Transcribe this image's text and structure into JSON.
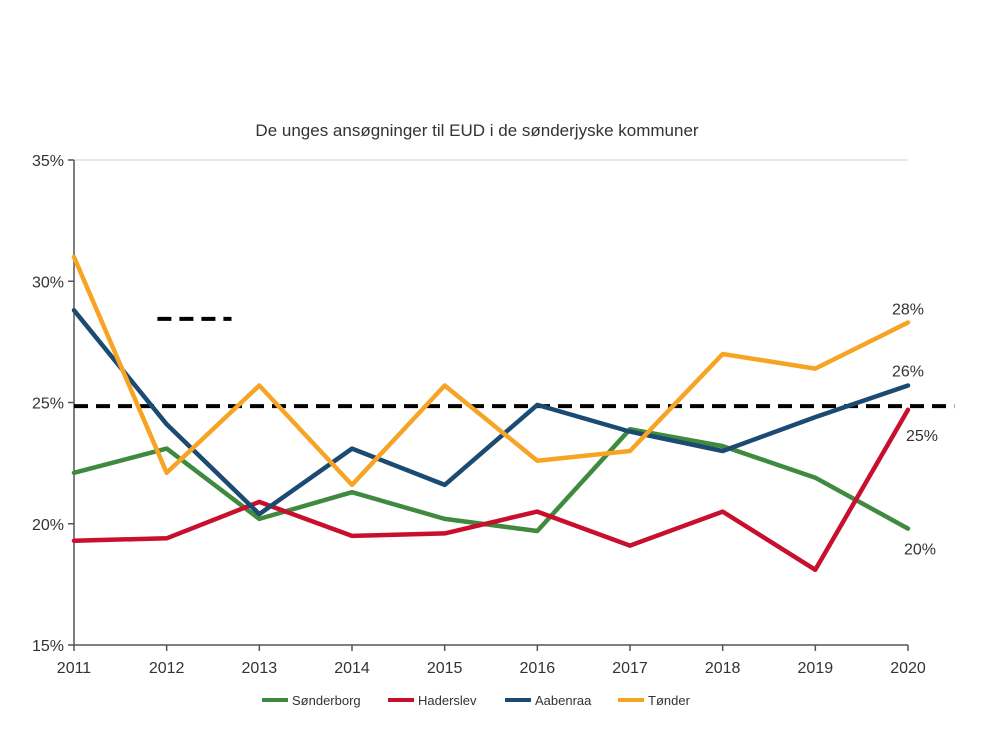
{
  "chart_data": {
    "type": "line",
    "title": "De unges ansøgninger til EUD i de sønderjyske kommuner",
    "xlabel": "",
    "ylabel": "",
    "x": [
      2011,
      2012,
      2013,
      2014,
      2015,
      2016,
      2017,
      2018,
      2019,
      2020
    ],
    "x_tick_labels": [
      "2011",
      "2012",
      "2013",
      "2014",
      "2015",
      "2016",
      "2017",
      "2018",
      "2019",
      "2020"
    ],
    "ylim": [
      15,
      35
    ],
    "y_ticks": [
      15,
      20,
      25,
      30,
      35
    ],
    "y_tick_labels": [
      "15%",
      "20%",
      "25%",
      "30%",
      "35%"
    ],
    "grid": "top line only",
    "legend_position": "bottom",
    "series": [
      {
        "name": "Sønderborg",
        "color": "#3f8a3f",
        "values": [
          22.1,
          23.1,
          20.2,
          21.3,
          20.2,
          19.7,
          23.9,
          23.2,
          21.9,
          19.8
        ],
        "end_label": "20%"
      },
      {
        "name": "Haderslev",
        "color": "#c8102e",
        "values": [
          19.3,
          19.4,
          20.9,
          19.5,
          19.6,
          20.5,
          19.1,
          20.5,
          18.1,
          24.7
        ],
        "end_label": "25%"
      },
      {
        "name": "Aabenraa",
        "color": "#1b4a72",
        "values": [
          28.8,
          24.1,
          20.4,
          23.1,
          21.6,
          24.9,
          23.8,
          23.0,
          24.4,
          25.7
        ],
        "end_label": "26%"
      },
      {
        "name": "Tønder",
        "color": "#f7a425",
        "values": [
          31.0,
          22.1,
          25.7,
          21.6,
          25.7,
          22.6,
          23.0,
          27.0,
          26.4,
          28.3
        ],
        "end_label": "28%"
      }
    ],
    "reference_lines": [
      {
        "value": 24.85,
        "from_x": 2011,
        "to_x": 2020.5,
        "style": "dashed",
        "color": "#000000"
      },
      {
        "value": 28.45,
        "from_x": 2011.9,
        "to_x": 2012.7,
        "style": "dashed",
        "color": "#000000"
      }
    ]
  }
}
